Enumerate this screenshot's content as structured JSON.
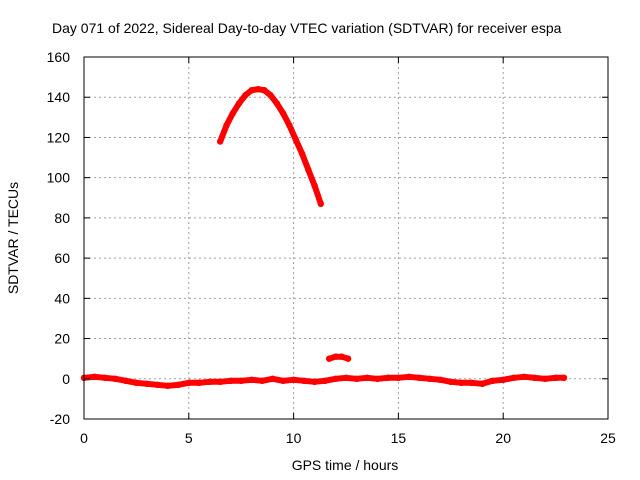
{
  "chart_data": {
    "type": "line",
    "title": "Day 071 of 2022, Sidereal Day-to-day VTEC variation (SDTVAR) for receiver espa",
    "xlabel": "GPS time / hours",
    "ylabel": "SDTVAR / TECUs",
    "xlim": [
      0,
      25
    ],
    "ylim": [
      -20,
      160
    ],
    "xticks": [
      0,
      5,
      10,
      15,
      20,
      25
    ],
    "xtick_labels": [
      "0",
      "5",
      "10",
      "15",
      "20",
      "25"
    ],
    "yticks": [
      -20,
      0,
      20,
      40,
      60,
      80,
      100,
      120,
      140,
      160
    ],
    "ytick_labels": [
      "-20",
      "0",
      "20",
      "40",
      "60",
      "80",
      "100",
      "120",
      "140",
      "160"
    ],
    "grid": true,
    "legend": "none",
    "series": [
      {
        "name": "arc-high",
        "color": "#ff0000",
        "x": [
          6.5,
          6.8,
          7.1,
          7.4,
          7.7,
          8.0,
          8.3,
          8.6,
          8.9,
          9.2,
          9.5,
          9.8,
          10.1,
          10.4,
          10.7,
          11.0,
          11.3
        ],
        "y": [
          118,
          126,
          132,
          137,
          141,
          143.5,
          144,
          143.5,
          141,
          137,
          132,
          126,
          119,
          112,
          104,
          96,
          87
        ]
      },
      {
        "name": "arc-mid",
        "color": "#ff0000",
        "x": [
          11.7,
          12.0,
          12.3,
          12.6
        ],
        "y": [
          10,
          11,
          11,
          10
        ]
      },
      {
        "name": "baseline",
        "color": "#ff0000",
        "x": [
          0,
          0.5,
          1.0,
          1.5,
          2.0,
          2.5,
          3.0,
          3.5,
          4.0,
          4.5,
          5.0,
          5.5,
          6.0,
          6.5,
          7.0,
          7.5,
          8.0,
          8.5,
          9.0,
          9.5,
          10.0,
          10.5,
          11.0,
          11.5,
          12.0,
          12.5,
          13.0,
          13.5,
          14.0,
          14.5,
          15.0,
          15.5,
          16.0,
          16.5,
          17.0,
          17.5,
          18.0,
          18.5,
          19.0,
          19.5,
          20.0,
          20.5,
          21.0,
          21.5,
          22.0,
          22.5,
          22.9
        ],
        "y": [
          0.5,
          1,
          0.5,
          0,
          -1,
          -2,
          -2.5,
          -3,
          -3.5,
          -3,
          -2,
          -2,
          -1.5,
          -1.5,
          -1,
          -1,
          -0.5,
          -1,
          0,
          -1,
          -0.5,
          -1,
          -1.5,
          -1,
          0,
          0.5,
          0,
          0.5,
          0,
          0.5,
          0.5,
          1,
          0.5,
          0,
          -0.5,
          -1.5,
          -2,
          -2,
          -2.5,
          -1,
          -0.5,
          0.5,
          1,
          0.5,
          0,
          0.5,
          0.5
        ]
      }
    ]
  }
}
